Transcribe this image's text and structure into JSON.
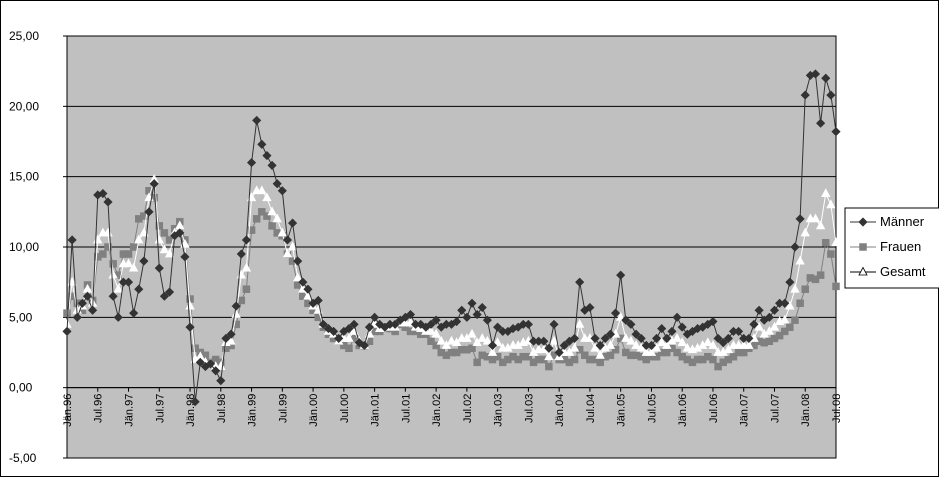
{
  "chart_data": {
    "type": "line",
    "title": "",
    "xlabel": "",
    "ylabel": "",
    "ylim": [
      -5,
      25
    ],
    "y_ticks": [
      "-5,00",
      "0,00",
      "5,00",
      "10,00",
      "15,00",
      "20,00",
      "25,00"
    ],
    "grid": "horizontal",
    "legend": "right",
    "plot_background": "#c0c0c0",
    "x_tick_labels": [
      "Jän.96",
      "Jul.96",
      "Jän.97",
      "Jul.97",
      "Jän.98",
      "Jul.98",
      "Jän.99",
      "Jul.99",
      "Jän.00",
      "Jul.00",
      "Jän.01",
      "Jul.01",
      "Jän.02",
      "Jul.02",
      "Jän.03",
      "Jul.03",
      "Jän.04",
      "Jul.04",
      "Jän.05",
      "Jul.05",
      "Jän.06",
      "Jul.06",
      "Jän.07",
      "Jul.07",
      "Jän.08",
      "Jul.08"
    ],
    "series": [
      {
        "name": "Männer",
        "color": "#333333",
        "marker": "diamond",
        "values": [
          4.0,
          10.5,
          5.0,
          6.0,
          6.5,
          5.5,
          13.7,
          13.8,
          13.2,
          6.5,
          5.0,
          7.5,
          7.5,
          5.3,
          7.0,
          9.0,
          12.5,
          14.5,
          8.5,
          6.5,
          6.8,
          10.8,
          11.0,
          9.3,
          4.3,
          -1.0,
          1.8,
          1.5,
          1.7,
          1.2,
          0.5,
          3.5,
          3.8,
          5.8,
          9.5,
          10.5,
          16.0,
          19.0,
          17.3,
          16.5,
          15.8,
          14.5,
          14.0,
          10.5,
          11.7,
          9.0,
          7.5,
          7.0,
          6.0,
          6.2,
          4.5,
          4.2,
          4.0,
          3.5,
          4.0,
          4.2,
          4.5,
          3.2,
          3.0,
          4.3,
          5.0,
          4.5,
          4.3,
          4.5,
          4.5,
          4.8,
          5.0,
          5.2,
          4.5,
          4.5,
          4.3,
          4.5,
          4.8,
          4.3,
          4.5,
          4.5,
          4.7,
          5.5,
          5.0,
          6.0,
          5.2,
          5.7,
          4.8,
          3.0,
          4.3,
          4.0,
          4.0,
          4.2,
          4.3,
          4.5,
          4.5,
          3.3,
          3.3,
          3.3,
          2.8,
          4.5,
          2.5,
          3.0,
          3.3,
          3.5,
          7.5,
          5.5,
          5.7,
          3.5,
          3.0,
          3.5,
          3.8,
          5.3,
          8.0,
          4.8,
          4.5,
          3.8,
          3.5,
          3.0,
          3.0,
          3.5,
          4.2,
          3.5,
          4.0,
          5.0,
          4.3,
          3.8,
          4.0,
          4.2,
          4.3,
          4.5,
          4.7,
          3.5,
          3.2,
          3.5,
          4.0,
          4.0,
          3.5,
          3.5,
          4.5,
          5.5,
          4.8,
          5.0,
          5.5,
          6.0,
          6.0,
          7.5,
          10.0,
          12.0,
          20.8,
          22.2,
          22.3,
          18.8,
          22.0,
          20.8,
          18.2
        ]
      },
      {
        "name": "Frauen",
        "color": "#808080",
        "marker": "square",
        "values": [
          5.3,
          6.5,
          6.0,
          5.5,
          7.3,
          6.2,
          9.3,
          9.5,
          10.0,
          8.8,
          8.0,
          9.5,
          9.5,
          10.0,
          12.0,
          12.2,
          14.0,
          13.5,
          11.5,
          11.0,
          10.5,
          11.3,
          11.8,
          10.5,
          6.3,
          2.8,
          2.5,
          2.3,
          1.8,
          2.0,
          1.8,
          2.8,
          3.0,
          4.5,
          6.2,
          7.0,
          11.2,
          12.0,
          12.5,
          12.2,
          11.5,
          11.0,
          10.8,
          9.5,
          9.0,
          7.3,
          6.5,
          6.0,
          5.5,
          5.0,
          4.3,
          3.8,
          3.5,
          3.3,
          3.0,
          2.8,
          3.5,
          3.0,
          3.0,
          3.3,
          4.0,
          4.0,
          4.3,
          4.2,
          4.0,
          4.5,
          4.3,
          4.0,
          4.0,
          3.8,
          3.8,
          3.3,
          3.0,
          2.5,
          2.3,
          2.5,
          2.5,
          2.7,
          2.7,
          2.8,
          1.8,
          2.3,
          2.2,
          2.0,
          2.2,
          1.8,
          2.0,
          2.2,
          2.0,
          2.2,
          2.2,
          1.8,
          2.0,
          2.0,
          1.5,
          2.3,
          2.0,
          2.0,
          1.8,
          2.0,
          2.7,
          2.3,
          2.0,
          2.0,
          1.8,
          2.2,
          2.3,
          2.7,
          3.5,
          2.5,
          2.3,
          2.3,
          2.2,
          2.0,
          2.2,
          2.2,
          2.5,
          2.5,
          2.8,
          2.5,
          2.2,
          2.0,
          1.8,
          2.0,
          2.0,
          2.2,
          2.0,
          1.5,
          1.8,
          2.0,
          2.2,
          2.5,
          2.5,
          2.8,
          3.0,
          3.3,
          3.2,
          3.3,
          3.5,
          3.7,
          4.0,
          4.3,
          4.8,
          6.0,
          7.0,
          7.8,
          7.7,
          8.0,
          10.3,
          9.5,
          7.2
        ]
      },
      {
        "name": "Gesamt",
        "color": "#ffffff",
        "marker": "triangle",
        "values": [
          4.5,
          7.5,
          5.5,
          5.8,
          7.0,
          6.0,
          10.5,
          11.0,
          11.0,
          8.0,
          7.0,
          8.8,
          8.8,
          8.5,
          10.5,
          11.0,
          13.5,
          14.8,
          10.5,
          9.8,
          9.5,
          11.0,
          11.5,
          10.2,
          5.8,
          2.0,
          2.2,
          1.8,
          1.7,
          1.5,
          1.5,
          3.2,
          3.3,
          5.2,
          8.0,
          8.5,
          13.5,
          14.0,
          14.0,
          13.5,
          12.5,
          12.0,
          11.0,
          9.5,
          10.0,
          7.8,
          7.0,
          6.5,
          5.8,
          5.5,
          4.5,
          4.0,
          3.8,
          3.3,
          3.5,
          3.5,
          4.0,
          3.3,
          3.0,
          3.8,
          4.5,
          4.2,
          4.3,
          4.3,
          4.3,
          4.6,
          4.6,
          4.6,
          4.3,
          4.2,
          4.0,
          4.0,
          3.8,
          3.3,
          3.0,
          3.3,
          3.2,
          3.5,
          3.5,
          3.8,
          3.2,
          3.5,
          3.3,
          2.5,
          3.2,
          2.8,
          2.8,
          3.0,
          3.0,
          3.2,
          3.3,
          2.5,
          2.7,
          2.7,
          2.2,
          3.3,
          2.2,
          2.5,
          2.5,
          2.8,
          4.5,
          3.5,
          3.5,
          2.8,
          2.3,
          2.8,
          3.0,
          3.8,
          5.0,
          3.5,
          3.3,
          3.0,
          2.8,
          2.5,
          2.5,
          2.8,
          3.2,
          3.0,
          3.3,
          3.5,
          3.2,
          2.8,
          2.7,
          2.8,
          3.0,
          3.2,
          3.0,
          2.5,
          2.5,
          2.7,
          3.0,
          3.0,
          3.0,
          3.0,
          3.5,
          4.3,
          3.8,
          4.0,
          4.3,
          4.7,
          4.8,
          5.8,
          7.0,
          9.0,
          11.0,
          12.0,
          12.0,
          11.5,
          13.8,
          13.0,
          10.3
        ]
      }
    ]
  }
}
